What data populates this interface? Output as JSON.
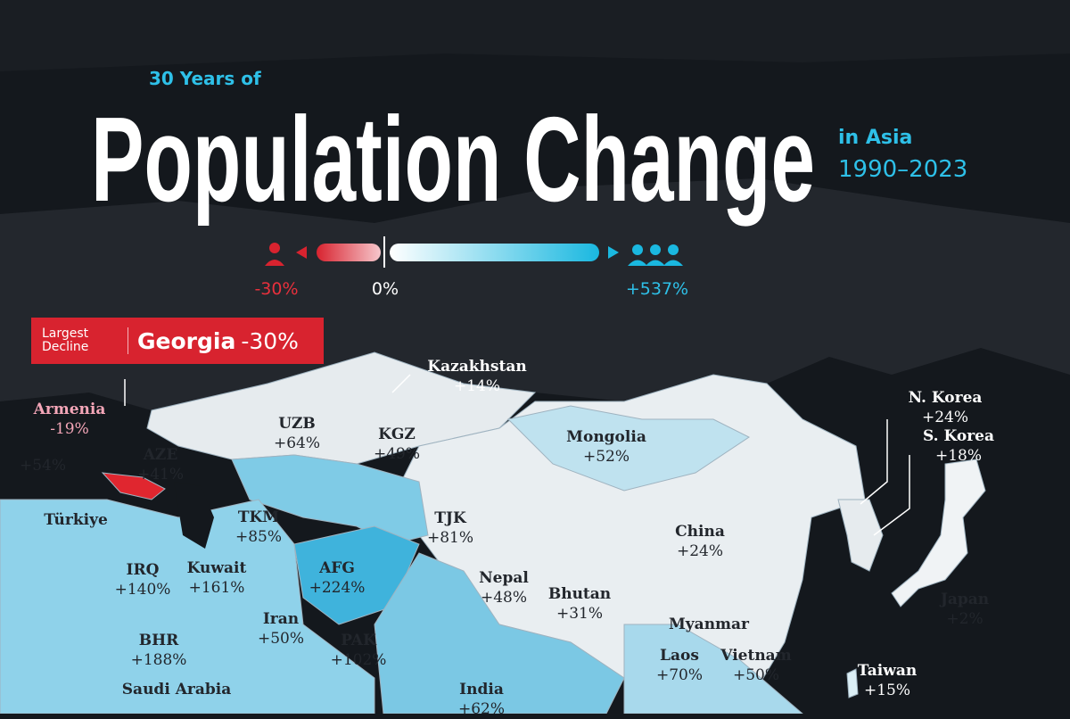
{
  "header": {
    "kicker": "30 Years of",
    "title": "Population Change",
    "region": "in Asia",
    "years": "1990–2023"
  },
  "legend": {
    "min": "-30%",
    "mid": "0%",
    "max": "+537%"
  },
  "callout": {
    "label": "Largest Decline",
    "country": "Georgia",
    "value": "-30%"
  },
  "countries": [
    {
      "name": "Kazakhstan",
      "change": "+14%"
    },
    {
      "name": "Armenia",
      "change": "-19%"
    },
    {
      "name": "UZB",
      "change": "+64%"
    },
    {
      "name": "KGZ",
      "change": "+49%"
    },
    {
      "name": "Mongolia",
      "change": "+52%"
    },
    {
      "name": "N. Korea",
      "change": "+24%"
    },
    {
      "name": "S. Korea",
      "change": "+18%"
    },
    {
      "name": "AZE",
      "change": "+41%"
    },
    {
      "change": "+54%"
    },
    {
      "name": "Türkiye"
    },
    {
      "name": "TKM",
      "change": "+85%"
    },
    {
      "name": "TJK",
      "change": "+81%"
    },
    {
      "name": "China",
      "change": "+24%"
    },
    {
      "name": "IRQ",
      "change": "+140%"
    },
    {
      "name": "Kuwait",
      "change": "+161%"
    },
    {
      "name": "AFG",
      "change": "+224%"
    },
    {
      "name": "Nepal",
      "change": "+48%"
    },
    {
      "name": "Bhutan",
      "change": "+31%"
    },
    {
      "name": "Japan",
      "change": "+2%"
    },
    {
      "name": "Iran",
      "change": "+50%"
    },
    {
      "name": "Myanmar"
    },
    {
      "name": "BHR",
      "change": "+188%"
    },
    {
      "name": "PAK",
      "change": "+102%"
    },
    {
      "name": "Laos",
      "change": "+70%"
    },
    {
      "name": "Vietnam",
      "change": "+50%"
    },
    {
      "name": "Taiwan",
      "change": "+15%"
    },
    {
      "name": "Saudi Arabia"
    },
    {
      "name": "India",
      "change": "+62%"
    }
  ]
}
